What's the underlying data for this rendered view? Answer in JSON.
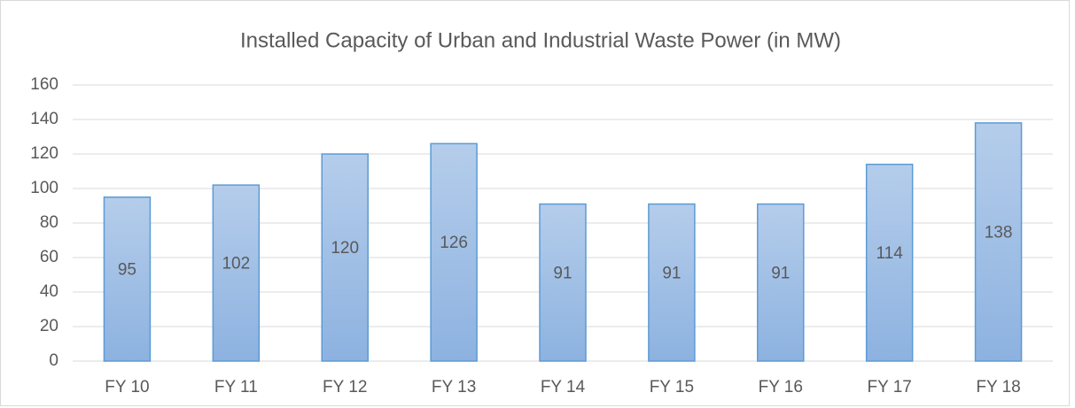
{
  "chart_data": {
    "type": "bar",
    "title": "Installed Capacity of Urban and Industrial Waste Power (in MW)",
    "categories": [
      "FY 10",
      "FY 11",
      "FY 12",
      "FY 13",
      "FY 14",
      "FY 15",
      "FY 16",
      "FY 17",
      "FY 18"
    ],
    "values": [
      95,
      102,
      120,
      126,
      91,
      91,
      91,
      114,
      138
    ],
    "color": "#5b9bd5",
    "ylim": [
      0,
      160
    ],
    "yticks": [
      0,
      20,
      40,
      60,
      80,
      100,
      120,
      140,
      160
    ],
    "grid": true
  }
}
